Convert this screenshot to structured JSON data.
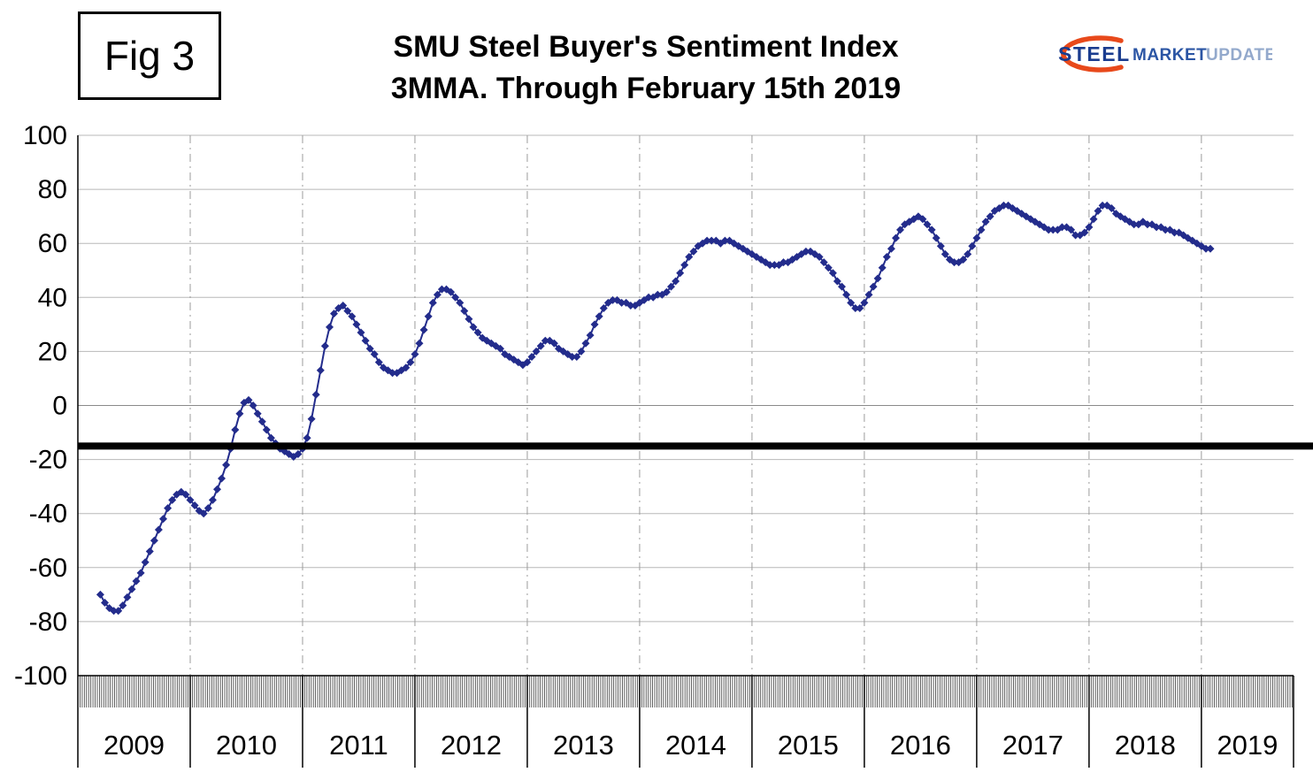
{
  "header": {
    "fig_label": "Fig 3",
    "title_line1": "SMU Steel Buyer's Sentiment Index",
    "title_line2": "3MMA. Through February 15th 2019"
  },
  "logo": {
    "word1": "STEEL",
    "word2": "MARKET",
    "word3": "UPDATE",
    "steel_color": "#1A3C8F",
    "market_color": "#2B55A4",
    "update_color": "#93A9CC",
    "swoosh_color": "#E8491D"
  },
  "chart_data": {
    "type": "line",
    "title": "SMU Steel Buyer's Sentiment Index",
    "subtitle": "3MMA. Through February 15th 2019",
    "xlabel": "",
    "ylabel": "",
    "xlim": [
      2009,
      2019.82
    ],
    "ylim": [
      -100,
      100
    ],
    "yticks": [
      100,
      80,
      60,
      40,
      20,
      0,
      -20,
      -40,
      -60,
      -80,
      -100
    ],
    "xticks": [
      "2009",
      "2010",
      "2011",
      "2012",
      "2013",
      "2014",
      "2015",
      "2016",
      "2017",
      "2018",
      "2019"
    ],
    "grid": {
      "horizontal": "solid",
      "vertical": "dash-dot"
    },
    "legend": "none",
    "reference_line": {
      "y": -15,
      "color": "#000000",
      "width": 8
    },
    "marker": {
      "shape": "diamond",
      "color": "#232C8C",
      "size": 9
    },
    "series": [
      {
        "name": "Steel Buyer's Sentiment Index 3MMA",
        "x_unit": "decimal-year",
        "x_start": 2009.2,
        "x_step": 0.04,
        "values": [
          -70,
          -73,
          -75,
          -76,
          -76,
          -74,
          -71,
          -68,
          -65,
          -62,
          -58,
          -54,
          -50,
          -46,
          -42,
          -38,
          -35,
          -33,
          -32,
          -33,
          -35,
          -37,
          -39,
          -40,
          -38,
          -35,
          -31,
          -27,
          -22,
          -16,
          -9,
          -3,
          1,
          2,
          0,
          -3,
          -6,
          -9,
          -12,
          -14,
          -16,
          -17,
          -18,
          -19,
          -18,
          -16,
          -12,
          -5,
          4,
          13,
          22,
          29,
          34,
          36,
          37,
          35,
          33,
          30,
          27,
          24,
          21,
          19,
          16,
          14,
          13,
          12,
          12,
          13,
          14,
          16,
          19,
          23,
          28,
          33,
          38,
          41,
          43,
          43,
          42,
          40,
          38,
          35,
          32,
          29,
          27,
          25,
          24,
          23,
          22,
          21,
          19,
          18,
          17,
          16,
          15,
          16,
          18,
          20,
          22,
          24,
          24,
          23,
          21,
          20,
          19,
          18,
          18,
          20,
          23,
          26,
          30,
          33,
          36,
          38,
          39,
          39,
          38,
          38,
          37,
          37,
          38,
          39,
          40,
          40,
          41,
          41,
          42,
          44,
          46,
          49,
          52,
          55,
          57,
          59,
          60,
          61,
          61,
          61,
          60,
          61,
          61,
          60,
          59,
          58,
          57,
          56,
          55,
          54,
          53,
          52,
          52,
          52,
          53,
          53,
          54,
          55,
          56,
          57,
          57,
          56,
          55,
          53,
          51,
          49,
          46,
          44,
          41,
          38,
          36,
          36,
          38,
          41,
          44,
          47,
          51,
          55,
          58,
          62,
          65,
          67,
          68,
          69,
          70,
          69,
          67,
          65,
          62,
          59,
          56,
          54,
          53,
          53,
          54,
          56,
          59,
          62,
          65,
          68,
          70,
          72,
          73,
          74,
          74,
          73,
          72,
          71,
          70,
          69,
          68,
          67,
          66,
          65,
          65,
          65,
          66,
          66,
          65,
          63,
          63,
          64,
          66,
          69,
          72,
          74,
          74,
          73,
          71,
          70,
          69,
          68,
          67,
          67,
          68,
          67,
          67,
          66,
          66,
          65,
          65,
          64,
          64,
          63,
          62,
          61,
          60,
          59,
          58,
          58
        ]
      }
    ]
  }
}
